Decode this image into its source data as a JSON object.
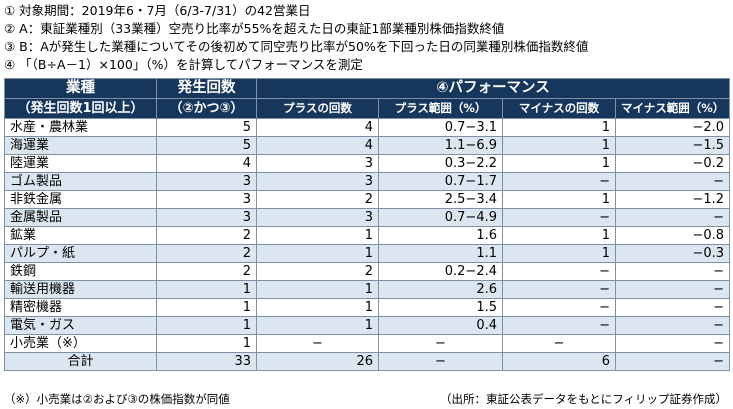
{
  "notes": [
    "① 対象期間：2019年6・7月（6/3-7/31）の42営業日",
    "② A：東証業種別（33業種）空売り比率が55%を超えた日の東証1部業種別株価指数終値",
    "③ B：Aが発生した業種についてその後初めて同空売り比率が50%を下回った日の同業種別株価指数終値",
    "④ 「（B÷A－1）×100」（%）を計算してパフォーマンスを測定"
  ],
  "header": {
    "industry": "業種",
    "industry_sub": "（発生回数1回以上）",
    "count": "発生回数",
    "count_sub": "（②かつ③）",
    "performance": "④パフォーマンス",
    "plus_count": "プラスの回数",
    "plus_range": "プラス範囲（%）",
    "minus_count": "マイナスの回数",
    "minus_range": "マイナス範囲（%）"
  },
  "rows": [
    {
      "industry": "水産・農林業",
      "count": "5",
      "plus": "4",
      "plus_range": "0.7−3.1",
      "minus": "1",
      "minus_range": "−2.0"
    },
    {
      "industry": "海運業",
      "count": "5",
      "plus": "4",
      "plus_range": "1.1−6.9",
      "minus": "1",
      "minus_range": "−1.5"
    },
    {
      "industry": "陸運業",
      "count": "4",
      "plus": "3",
      "plus_range": "0.3−2.2",
      "minus": "1",
      "minus_range": "−0.2"
    },
    {
      "industry": "ゴム製品",
      "count": "3",
      "plus": "3",
      "plus_range": "0.7−1.7",
      "minus": "−",
      "minus_range": "−"
    },
    {
      "industry": "非鉄金属",
      "count": "3",
      "plus": "2",
      "plus_range": "2.5−3.4",
      "minus": "1",
      "minus_range": "−1.2"
    },
    {
      "industry": "金属製品",
      "count": "3",
      "plus": "3",
      "plus_range": "0.7−4.9",
      "minus": "−",
      "minus_range": "−"
    },
    {
      "industry": "鉱業",
      "count": "2",
      "plus": "1",
      "plus_range": "1.6",
      "minus": "1",
      "minus_range": "−0.8"
    },
    {
      "industry": "パルプ・紙",
      "count": "2",
      "plus": "1",
      "plus_range": "1.1",
      "minus": "1",
      "minus_range": "−0.3"
    },
    {
      "industry": "鉄鋼",
      "count": "2",
      "plus": "2",
      "plus_range": "0.2−2.4",
      "minus": "−",
      "minus_range": "−"
    },
    {
      "industry": "輸送用機器",
      "count": "1",
      "plus": "1",
      "plus_range": "2.6",
      "minus": "−",
      "minus_range": "−"
    },
    {
      "industry": "精密機器",
      "count": "1",
      "plus": "1",
      "plus_range": "1.5",
      "minus": "−",
      "minus_range": "−"
    },
    {
      "industry": "電気・ガス",
      "count": "1",
      "plus": "1",
      "plus_range": "0.4",
      "minus": "−",
      "minus_range": "−"
    },
    {
      "industry": "小売業（※）",
      "count": "1",
      "plus": "−",
      "plus_range": "−",
      "minus": "−",
      "minus_range": "−"
    }
  ],
  "total": {
    "label": "合計",
    "count": "33",
    "plus": "26",
    "plus_range": "−",
    "minus": "6",
    "minus_range": "−"
  },
  "footer": {
    "left": "（※）小売業は②および③の株価指数が同値",
    "right": "（出所：東証公表データをもとにフィリップ証券作成）"
  }
}
